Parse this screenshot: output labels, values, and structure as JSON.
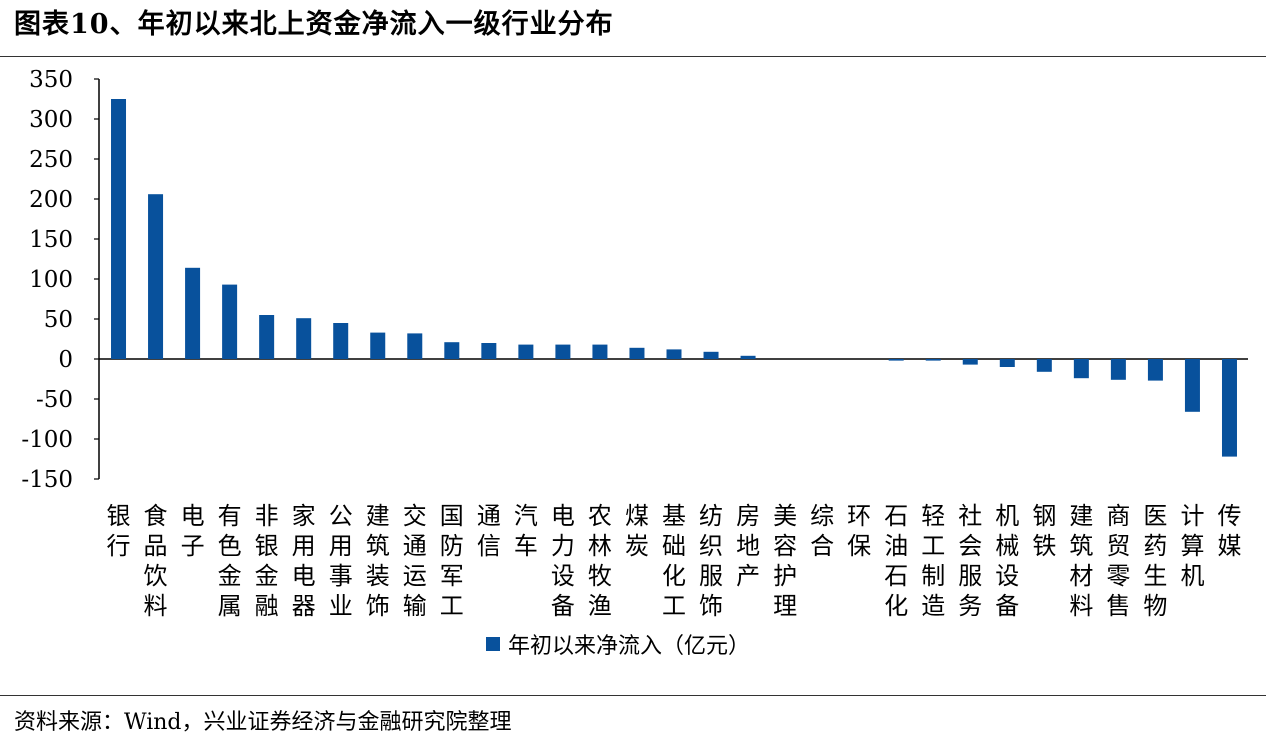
{
  "title": "图表10、年初以来北上资金净流入一级行业分布",
  "source": "资料来源：Wind，兴业证券经济与金融研究院整理",
  "colors": {
    "bar": "#08519c",
    "axis": "#000000"
  },
  "chart_data": {
    "type": "bar",
    "title": "图表10、年初以来北上资金净流入一级行业分布",
    "xlabel": "",
    "ylabel": "",
    "ylim": [
      -150,
      350
    ],
    "yticks": [
      350,
      300,
      250,
      200,
      150,
      100,
      50,
      0,
      -50,
      -100,
      -150
    ],
    "grid": false,
    "legend_position": "bottom",
    "categories": [
      "银行",
      "食品饮料",
      "电子",
      "有色金属",
      "非银金融",
      "家用电器",
      "公用事业",
      "建筑装饰",
      "交通运输",
      "国防军工",
      "通信",
      "汽车",
      "电力设备",
      "农林牧渔",
      "煤炭",
      "基础化工",
      "纺织服饰",
      "房地产",
      "美容护理",
      "综合",
      "环保",
      "石油石化",
      "轻工制造",
      "社会服务",
      "机械设备",
      "钢铁",
      "建筑材料",
      "商贸零售",
      "医药生物",
      "计算机",
      "传媒"
    ],
    "series": [
      {
        "name": "年初以来净流入（亿元）",
        "values": [
          325,
          206,
          114,
          93,
          55,
          51,
          45,
          33,
          32,
          21,
          20,
          18,
          18,
          18,
          14,
          12,
          9,
          4,
          0,
          0,
          0,
          -2,
          -2,
          -7,
          -10,
          -16,
          -24,
          -26,
          -27,
          -66,
          -122
        ]
      }
    ]
  }
}
